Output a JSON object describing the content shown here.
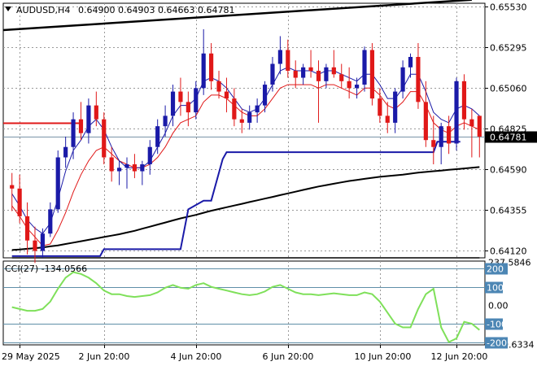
{
  "header": {
    "symbol_label": "AUDUSD,H4",
    "ohlc": "0.64900 0.64903 0.64663 0.64781"
  },
  "cci_label": "CCI(27) -134.0566",
  "colors": {
    "bull": "#1a1aa8",
    "bear": "#e01818",
    "ma_fast": "#1a1aa8",
    "ma_red": "#e01818",
    "ma_slow": "#000000",
    "cci_line": "#7fe05a",
    "grid": "#9a9a9a",
    "current_price_bg": "#000000"
  },
  "chart_data": [
    {
      "type": "candlestick",
      "title": "AUDUSD,H4",
      "x_ticks": [
        "29 May 2025",
        "2 Jun 20:00",
        "4 Jun 20:00",
        "6 Jun 20:00",
        "10 Jun 20:00",
        "12 Jun 20:00"
      ],
      "y_ticks": [
        0.6553,
        0.65295,
        0.6506,
        0.64825,
        0.6459,
        0.64355,
        0.6412
      ],
      "y_tick_labels": [
        "0.65530",
        "0.65295",
        "0.65060",
        "0.64825",
        "0.64590",
        "0.64355",
        "0.64120"
      ],
      "ylim": [
        0.6408,
        0.6555
      ],
      "current_price": 0.64781,
      "current_price_label": "0.64781",
      "ohlc": [
        [
          0.645,
          0.6457,
          0.6435,
          0.6448
        ],
        [
          0.6448,
          0.6456,
          0.6428,
          0.6432
        ],
        [
          0.6432,
          0.644,
          0.641,
          0.6418
        ],
        [
          0.6418,
          0.6426,
          0.6405,
          0.6412
        ],
        [
          0.6412,
          0.6425,
          0.6408,
          0.6422
        ],
        [
          0.6422,
          0.644,
          0.642,
          0.6436
        ],
        [
          0.6436,
          0.647,
          0.6434,
          0.6466
        ],
        [
          0.6466,
          0.6478,
          0.646,
          0.6472
        ],
        [
          0.6472,
          0.6492,
          0.6465,
          0.6488
        ],
        [
          0.6488,
          0.6498,
          0.6476,
          0.648
        ],
        [
          0.648,
          0.65,
          0.6474,
          0.6496
        ],
        [
          0.6496,
          0.6504,
          0.6484,
          0.6488
        ],
        [
          0.6488,
          0.6492,
          0.6462,
          0.6466
        ],
        [
          0.6466,
          0.6472,
          0.6452,
          0.6458
        ],
        [
          0.6458,
          0.6464,
          0.645,
          0.646
        ],
        [
          0.646,
          0.6466,
          0.6448,
          0.6462
        ],
        [
          0.6462,
          0.6468,
          0.6454,
          0.6458
        ],
        [
          0.6458,
          0.6464,
          0.645,
          0.6462
        ],
        [
          0.6462,
          0.6476,
          0.6456,
          0.6472
        ],
        [
          0.6472,
          0.6488,
          0.6468,
          0.6484
        ],
        [
          0.6484,
          0.6496,
          0.6478,
          0.649
        ],
        [
          0.649,
          0.6508,
          0.6484,
          0.6504
        ],
        [
          0.6504,
          0.6512,
          0.649,
          0.6498
        ],
        [
          0.6498,
          0.6504,
          0.6484,
          0.6492
        ],
        [
          0.6492,
          0.651,
          0.6488,
          0.6506
        ],
        [
          0.6506,
          0.654,
          0.6502,
          0.6526
        ],
        [
          0.6526,
          0.6532,
          0.6505,
          0.651
        ],
        [
          0.651,
          0.6516,
          0.65,
          0.6504
        ],
        [
          0.6504,
          0.6512,
          0.6492,
          0.65
        ],
        [
          0.65,
          0.6506,
          0.6484,
          0.6488
        ],
        [
          0.6488,
          0.6494,
          0.648,
          0.6486
        ],
        [
          0.6486,
          0.6496,
          0.6482,
          0.6492
        ],
        [
          0.6492,
          0.65,
          0.6486,
          0.6496
        ],
        [
          0.6496,
          0.651,
          0.6492,
          0.6508
        ],
        [
          0.6508,
          0.6524,
          0.6504,
          0.652
        ],
        [
          0.652,
          0.6536,
          0.6514,
          0.6528
        ],
        [
          0.6528,
          0.6534,
          0.6512,
          0.6516
        ],
        [
          0.6516,
          0.6522,
          0.6506,
          0.6512
        ],
        [
          0.6512,
          0.652,
          0.6508,
          0.6518
        ],
        [
          0.6518,
          0.6528,
          0.6512,
          0.6516
        ],
        [
          0.6516,
          0.6522,
          0.6486,
          0.651
        ],
        [
          0.651,
          0.652,
          0.6506,
          0.6518
        ],
        [
          0.6518,
          0.6528,
          0.6512,
          0.6514
        ],
        [
          0.6514,
          0.652,
          0.6506,
          0.651
        ],
        [
          0.651,
          0.6518,
          0.65,
          0.6506
        ],
        [
          0.6506,
          0.6512,
          0.65,
          0.6508
        ],
        [
          0.6508,
          0.653,
          0.6504,
          0.6528
        ],
        [
          0.6528,
          0.6532,
          0.6496,
          0.65
        ],
        [
          0.65,
          0.6506,
          0.6486,
          0.649
        ],
        [
          0.649,
          0.6498,
          0.648,
          0.6486
        ],
        [
          0.6486,
          0.6506,
          0.648,
          0.6504
        ],
        [
          0.6504,
          0.6522,
          0.65,
          0.6518
        ],
        [
          0.6518,
          0.6526,
          0.6512,
          0.6524
        ],
        [
          0.6524,
          0.6532,
          0.6494,
          0.6498
        ],
        [
          0.6498,
          0.651,
          0.6472,
          0.6476
        ],
        [
          0.6476,
          0.649,
          0.6462,
          0.6472
        ],
        [
          0.6472,
          0.6486,
          0.6462,
          0.6484
        ],
        [
          0.6484,
          0.649,
          0.6468,
          0.6474
        ],
        [
          0.6474,
          0.6512,
          0.647,
          0.651
        ],
        [
          0.651,
          0.6514,
          0.6482,
          0.6488
        ],
        [
          0.6488,
          0.6494,
          0.6466,
          0.6484
        ],
        [
          0.649,
          0.649,
          0.6466,
          0.6478
        ]
      ],
      "ma_blue": [
        0.6445,
        0.6438,
        0.643,
        0.6425,
        0.6422,
        0.6428,
        0.6442,
        0.6458,
        0.647,
        0.6476,
        0.6484,
        0.6488,
        0.6482,
        0.6472,
        0.6464,
        0.646,
        0.646,
        0.646,
        0.6464,
        0.6472,
        0.648,
        0.649,
        0.6496,
        0.6496,
        0.65,
        0.651,
        0.6512,
        0.651,
        0.6506,
        0.65,
        0.6494,
        0.6492,
        0.6494,
        0.65,
        0.6508,
        0.6516,
        0.6518,
        0.6516,
        0.6516,
        0.6516,
        0.6514,
        0.6516,
        0.6516,
        0.6514,
        0.6512,
        0.651,
        0.6514,
        0.6514,
        0.6508,
        0.65,
        0.65,
        0.6506,
        0.6514,
        0.6514,
        0.6504,
        0.6492,
        0.6488,
        0.6486,
        0.6494,
        0.6496,
        0.6494,
        0.649
      ],
      "ma_red": [
        0.6438,
        0.6432,
        0.6425,
        0.642,
        0.6415,
        0.6416,
        0.6424,
        0.6434,
        0.6446,
        0.6456,
        0.6464,
        0.647,
        0.6472,
        0.6468,
        0.6464,
        0.6462,
        0.646,
        0.646,
        0.6462,
        0.6466,
        0.6472,
        0.648,
        0.6486,
        0.6488,
        0.649,
        0.6498,
        0.6502,
        0.6502,
        0.65,
        0.6496,
        0.6492,
        0.649,
        0.649,
        0.6494,
        0.65,
        0.6506,
        0.6508,
        0.6508,
        0.6508,
        0.6508,
        0.6506,
        0.6508,
        0.6508,
        0.6506,
        0.6504,
        0.6502,
        0.6506,
        0.6506,
        0.6502,
        0.6496,
        0.6494,
        0.6498,
        0.6504,
        0.6504,
        0.6496,
        0.6486,
        0.6482,
        0.648,
        0.6484,
        0.6486,
        0.6484,
        0.6482
      ],
      "ma_slow": [
        0.64125,
        0.64128,
        0.64132,
        0.64136,
        0.6414,
        0.64146,
        0.64152,
        0.6416,
        0.64168,
        0.64176,
        0.64184,
        0.64192,
        0.642,
        0.64208,
        0.64216,
        0.64226,
        0.64236,
        0.64248,
        0.6426,
        0.64272,
        0.64284,
        0.64296,
        0.64308,
        0.64318,
        0.64328,
        0.6434,
        0.64352,
        0.64362,
        0.64372,
        0.64382,
        0.64392,
        0.64402,
        0.64412,
        0.64422,
        0.64432,
        0.64442,
        0.64452,
        0.64462,
        0.64472,
        0.64482,
        0.64492,
        0.645,
        0.64508,
        0.64516,
        0.64524,
        0.6453,
        0.64536,
        0.64542,
        0.64548,
        0.64552,
        0.64556,
        0.6456,
        0.64566,
        0.64572,
        0.64576,
        0.6458,
        0.64584,
        0.64588,
        0.64592,
        0.64596,
        0.646,
        0.64604
      ],
      "trendline": {
        "start": 0.65395,
        "end": 0.6557
      },
      "horizontal_red_level": 0.6486,
      "stop_line": [
        0.6408,
        0.6408,
        0.6408,
        0.6408,
        0.6408,
        0.6408,
        0.6408,
        0.6408,
        0.6408,
        0.6408,
        0.6408,
        0.6408,
        0.6408,
        0.6408,
        0.6408,
        0.6408,
        0.6408,
        0.6408,
        0.6408,
        0.6408,
        0.6408,
        0.6408,
        0.6408,
        0.6408,
        0.6408,
        0.6408,
        0.6408,
        0.6408,
        0.6408,
        0.6408,
        0.6408,
        0.6408,
        0.6408,
        0.6408,
        0.6408,
        0.6408,
        0.6408,
        0.6408,
        0.6408,
        0.6408,
        0.6408,
        0.6408,
        0.6408,
        0.6408,
        0.6408,
        0.6408,
        0.6408,
        0.6408,
        0.6408,
        0.6408,
        0.6408,
        0.6408,
        0.6408,
        0.6408,
        0.6408,
        0.6408,
        0.6408,
        0.6408,
        0.6408,
        0.6408,
        0.6408,
        0.6408
      ],
      "step_line": [
        [
          0.0,
          0.6409
        ],
        [
          11.5,
          0.6409
        ],
        [
          12.0,
          0.6413
        ],
        [
          22.0,
          0.6413
        ],
        [
          23.0,
          0.6436
        ],
        [
          25.0,
          0.6441
        ],
        [
          26.0,
          0.6441
        ],
        [
          27.5,
          0.6465
        ],
        [
          28.0,
          0.6469
        ],
        [
          55.0,
          0.6469
        ],
        [
          55.5,
          0.6475
        ],
        [
          58.5,
          0.6475
        ]
      ]
    },
    {
      "type": "line",
      "title": "CCI(27) -134.0566",
      "y_ticks": [
        237.5846,
        100,
        0.0,
        -100,
        -209.6334
      ],
      "y_tick_labels": [
        "237.5846",
        "100",
        "0.00",
        "-100",
        "-209.6334"
      ],
      "extra_levels": [
        200,
        -200
      ],
      "extra_level_labels": [
        "200",
        "-200"
      ],
      "ylim": [
        -215,
        240
      ],
      "values": [
        -10,
        -20,
        -30,
        -30,
        -20,
        20,
        90,
        150,
        180,
        170,
        150,
        120,
        80,
        60,
        60,
        50,
        45,
        50,
        55,
        70,
        95,
        110,
        95,
        90,
        110,
        120,
        100,
        90,
        80,
        70,
        60,
        55,
        60,
        75,
        100,
        110,
        90,
        70,
        60,
        60,
        55,
        60,
        65,
        60,
        55,
        55,
        70,
        60,
        20,
        -40,
        -100,
        -120,
        -120,
        -20,
        60,
        90,
        -120,
        -200,
        -180,
        -90,
        -100,
        -134
      ]
    }
  ]
}
